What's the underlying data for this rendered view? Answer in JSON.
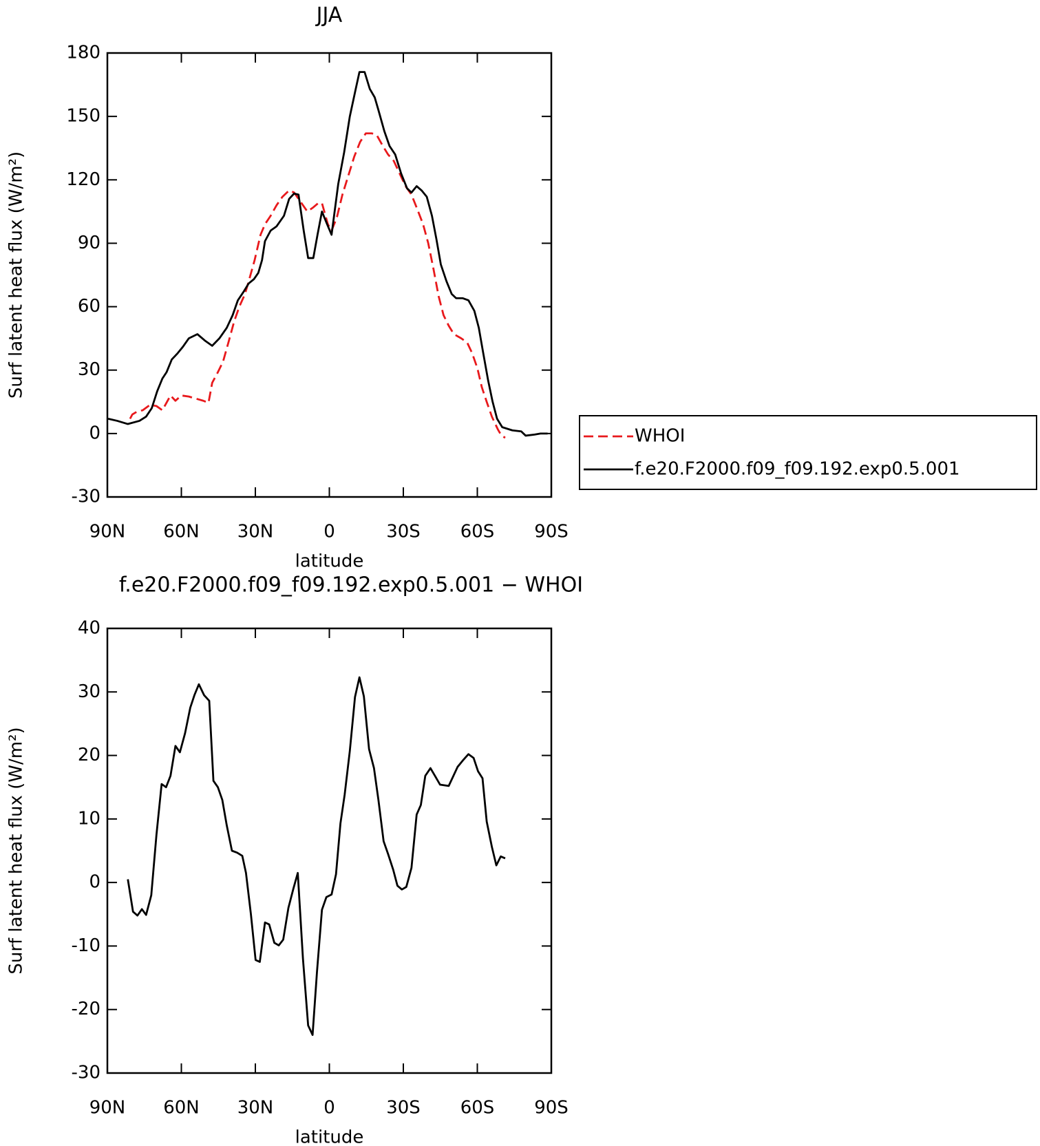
{
  "chart_data": [
    {
      "type": "line",
      "title": "JJA",
      "x_label": "latitude",
      "y_label": "Surf latent heat flux (W/m²)",
      "xlim": [
        90,
        -90
      ],
      "xticks": [
        {
          "value": 90,
          "label": "90N"
        },
        {
          "value": 60,
          "label": "60N"
        },
        {
          "value": 30,
          "label": "30N"
        },
        0,
        {
          "value": -30,
          "label": "30S"
        },
        {
          "value": -60,
          "label": "60S"
        },
        {
          "value": -90,
          "label": "90S"
        }
      ],
      "ylim": [
        -30,
        180
      ],
      "yticks": [
        -30,
        0,
        30,
        60,
        90,
        120,
        150,
        180
      ],
      "legend": "right",
      "series": [
        {
          "name": "WHOI",
          "color": "#e8191c",
          "dash": true,
          "x": [
            80.8,
            79.9,
            77.8,
            75.7,
            72.8,
            70.1,
            67.7,
            64.4,
            62.4,
            60,
            57,
            54.1,
            51.1,
            49,
            47.5,
            45.2,
            43.1,
            40.7,
            38.6,
            36.5,
            34.2,
            32.7,
            30.3,
            27.9,
            26.1,
            23.8,
            21.4,
            19,
            16.3,
            14.3,
            11.9,
            8.9,
            6.5,
            4.5,
            3.0,
            0.6,
            -0.9,
            -3.0,
            -5.3,
            -7.7,
            -10.1,
            -12.5,
            -14.8,
            -17.2,
            -19.3,
            -21.7,
            -23.8,
            -26.1,
            -28.5,
            -30.9,
            -33.3,
            -35.7,
            -38.0,
            -40.1,
            -42.2,
            -44.3,
            -46.3,
            -48.4,
            -50.5,
            -53.5,
            -55.9,
            -57.9,
            -60,
            -61.8,
            -63.8,
            -65.9,
            -68.3,
            -69.8,
            -71.3
          ],
          "values": [
            7,
            9,
            10.5,
            11,
            13.5,
            13,
            11,
            18,
            15.5,
            18,
            17.5,
            16.5,
            15.5,
            14.5,
            24,
            29,
            34,
            44,
            53,
            60,
            66,
            72,
            82,
            94,
            99,
            103,
            108,
            112,
            115,
            114,
            110,
            105,
            107,
            109,
            109,
            99,
            96,
            102,
            113,
            122,
            131,
            138,
            142,
            142,
            141,
            136,
            132,
            129,
            123,
            117,
            113,
            106,
            99,
            90,
            78,
            65,
            56,
            51,
            47,
            45,
            43,
            38,
            31,
            22,
            15,
            8,
            2,
            -1,
            -2
          ]
        },
        {
          "name": "f.e20.F2000.f09_f09.192.exp0.5.001",
          "color": "#000000",
          "dash": false,
          "x": [
            89.7,
            86,
            81.7,
            77,
            74.3,
            72,
            69.8,
            67.7,
            66,
            63.9,
            61.5,
            59.4,
            57,
            53.5,
            50.5,
            47.5,
            44.6,
            41.6,
            39.2,
            37.1,
            34.8,
            32.7,
            30.6,
            28.8,
            27.3,
            26.1,
            23.8,
            21.4,
            18.4,
            16.3,
            14.3,
            12.5,
            10.4,
            8.6,
            6.5,
            4.8,
            3.0,
            0.9,
            -0.9,
            -3.6,
            -6.0,
            -8.3,
            -10.7,
            -12.2,
            -14.3,
            -16.4,
            -18.4,
            -19.9,
            -22.3,
            -24.4,
            -26.7,
            -29.1,
            -31.5,
            -33.3,
            -35.4,
            -37.4,
            -39.5,
            -41.6,
            -43.4,
            -45.2,
            -47.5,
            -49.6,
            -51.4,
            -54.1,
            -56.4,
            -58.8,
            -60.6,
            -62.4,
            -64.4,
            -66.2,
            -68.0,
            -70.1,
            -74.2,
            -77.8,
            -79.6,
            -83.2,
            -85.6,
            -88.5
          ],
          "values": [
            7,
            6,
            4.5,
            6,
            8,
            12,
            20,
            26,
            29,
            35,
            38,
            41,
            45,
            47,
            44,
            41.5,
            45,
            50,
            56,
            63,
            67,
            71,
            73,
            76,
            82,
            91,
            96,
            98,
            103,
            111,
            113.5,
            113,
            96,
            83,
            83,
            94,
            105,
            99,
            94,
            118,
            133,
            150,
            163,
            171,
            171,
            163,
            159,
            153,
            143,
            136,
            132,
            123,
            116,
            114,
            117,
            115,
            112,
            103,
            92,
            80,
            72,
            66,
            64,
            64,
            63,
            58,
            50,
            38,
            25,
            15,
            7,
            3,
            1.5,
            1,
            -1,
            -0.5,
            0,
            0
          ]
        }
      ]
    },
    {
      "type": "line",
      "title": "f.e20.F2000.f09_f09.192.exp0.5.001 − WHOI",
      "x_label": "latitude",
      "y_label": "Surf latent heat flux (W/m²)",
      "xlim": [
        90,
        -90
      ],
      "xticks": [
        {
          "value": 90,
          "label": "90N"
        },
        {
          "value": 60,
          "label": "60N"
        },
        {
          "value": 30,
          "label": "30N"
        },
        0,
        {
          "value": -30,
          "label": "30S"
        },
        {
          "value": -60,
          "label": "60S"
        },
        {
          "value": -90,
          "label": "90S"
        }
      ],
      "ylim": [
        -30,
        40
      ],
      "yticks": [
        -30,
        -20,
        -10,
        0,
        10,
        20,
        30,
        40
      ],
      "series": [
        {
          "color": "#000000",
          "dash": false,
          "x": [
            81.7,
            79.6,
            77.8,
            76.0,
            74.3,
            72.2,
            70.1,
            68.0,
            66.2,
            64.4,
            62.4,
            60.6,
            58.5,
            56.4,
            54.7,
            52.9,
            50.8,
            48.7,
            47.0,
            45.2,
            43.4,
            41.6,
            39.5,
            37.4,
            35.3,
            33.8,
            31.8,
            29.9,
            28.2,
            26.1,
            24.4,
            22.3,
            20.5,
            18.7,
            16.6,
            14.6,
            12.8,
            10.7,
            8.6,
            6.8,
            5.0,
            3.0,
            1.2,
            -0.9,
            -2.7,
            -4.5,
            -6.2,
            -8.3,
            -10.4,
            -12.2,
            -14.0,
            -16.1,
            -18.1,
            -19.9,
            -22.0,
            -23.8,
            -25.9,
            -27.6,
            -29.4,
            -31.2,
            -33.3,
            -35.4,
            -37.1,
            -38.9,
            -41.0,
            -42.8,
            -44.9,
            -48.4,
            -52.0,
            -54.1,
            -56.4,
            -58.5,
            -60.3,
            -62.1,
            -63.8,
            -65.9,
            -67.7,
            -69.5,
            -71.3
          ],
          "values": [
            0.5,
            -4.6,
            -5.2,
            -4.2,
            -5.1,
            -2,
            7.5,
            15.5,
            15,
            16.8,
            21.5,
            20.5,
            23.5,
            27.5,
            29.5,
            31.2,
            29.5,
            28.6,
            16,
            15,
            13,
            9,
            5,
            4.7,
            4.2,
            1.5,
            -5,
            -12.2,
            -12.5,
            -6.3,
            -6.6,
            -9.5,
            -9.9,
            -9,
            -4,
            -1,
            1.5,
            -12,
            -22.5,
            -24,
            -14,
            -4.3,
            -2.3,
            -1.9,
            1.3,
            9.3,
            13.8,
            20.7,
            29.2,
            32.3,
            29.3,
            21,
            18,
            13,
            6.5,
            4.5,
            2,
            -0.5,
            -1.1,
            -0.7,
            2.3,
            10.7,
            12.2,
            16.8,
            18,
            16.8,
            15.4,
            15.2,
            18.2,
            19.2,
            20.2,
            19.6,
            17.5,
            16.4,
            9.6,
            5.6,
            2.7,
            4.1,
            3.8
          ]
        }
      ]
    }
  ]
}
